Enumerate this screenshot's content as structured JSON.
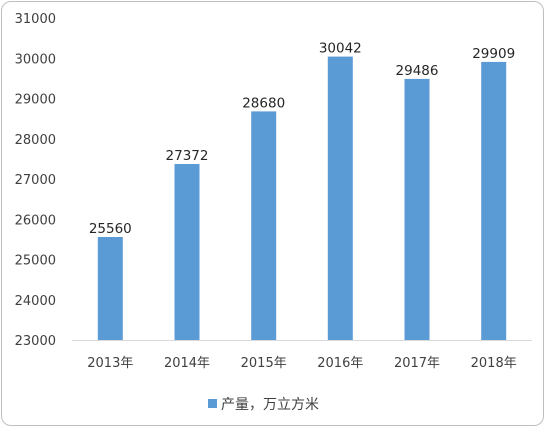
{
  "chart_data": {
    "type": "bar",
    "categories": [
      "2013年",
      "2014年",
      "2015年",
      "2016年",
      "2017年",
      "2018年"
    ],
    "series": [
      {
        "name": "产量，万立方米",
        "values": [
          25560,
          27372,
          28680,
          30042,
          29486,
          29909
        ]
      }
    ],
    "ylim": [
      23000,
      31000
    ],
    "yticks": [
      23000,
      24000,
      25000,
      26000,
      27000,
      28000,
      29000,
      30000,
      31000
    ],
    "grid": false,
    "legend": "bottom",
    "data_labels": true,
    "colors": {
      "bar": "#5b9bd5",
      "axis": "#d9d9d9",
      "text": "#404040"
    }
  }
}
